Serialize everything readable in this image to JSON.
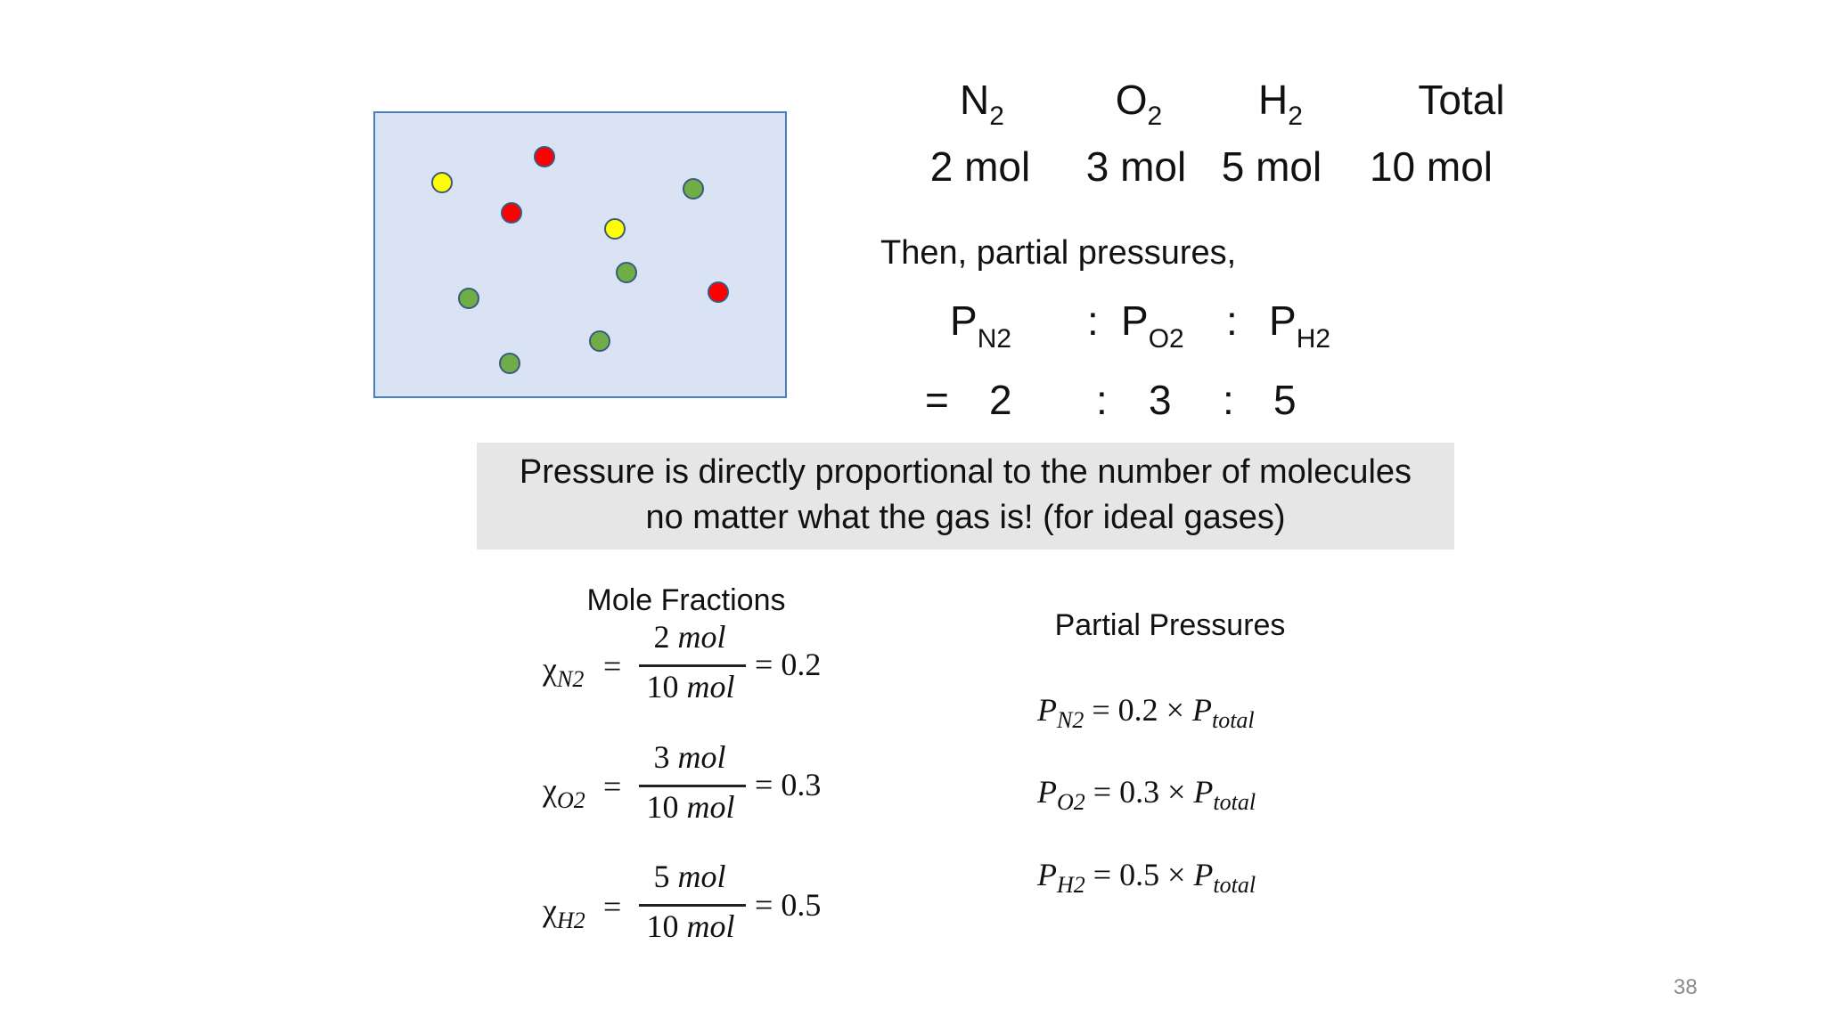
{
  "gases": [
    {
      "symbol": "N",
      "subscript": "2",
      "moles": "2 mol"
    },
    {
      "symbol": "O",
      "subscript": "2",
      "moles": "3 mol"
    },
    {
      "symbol": "H",
      "subscript": "2",
      "moles": "5 mol"
    },
    {
      "symbol": "Total",
      "subscript": "",
      "moles": "10 mol"
    }
  ],
  "then_text": "Then, partial pressures,",
  "pressure_ratio": {
    "p": "P",
    "subs": [
      "N2",
      "O2",
      "H2"
    ],
    "colon": ":",
    "equals": "=",
    "values": [
      "2",
      "3",
      "5"
    ]
  },
  "banner": {
    "line1": "Pressure is directly proportional to the number of molecules",
    "line2": "no matter what the gas is! (for ideal gases)"
  },
  "mole_fractions": {
    "title": "Mole Fractions",
    "chi": "χ",
    "rows": [
      {
        "sub": "N2",
        "num": "2",
        "den": "10",
        "unit": "mol",
        "result": "0.2"
      },
      {
        "sub": "O2",
        "num": "3",
        "den": "10",
        "unit": "mol",
        "result": "0.3"
      },
      {
        "sub": "H2",
        "num": "5",
        "den": "10",
        "unit": "mol",
        "result": "0.5"
      }
    ]
  },
  "partial_pressures": {
    "title": "Partial Pressures",
    "rows": [
      {
        "p": "P",
        "sub": "N2",
        "factor": "0.2",
        "times": "×",
        "total_p": "P",
        "total_sub": "total"
      },
      {
        "p": "P",
        "sub": "O2",
        "factor": "0.3",
        "times": "×",
        "total_p": "P",
        "total_sub": "total"
      },
      {
        "p": "P",
        "sub": "H2",
        "factor": "0.5",
        "times": "×",
        "total_p": "P",
        "total_sub": "total"
      }
    ]
  },
  "molecule_colors": {
    "red": "#ff0000",
    "yellow": "#ffff00",
    "green": "#70ad47"
  },
  "page_number": "38"
}
